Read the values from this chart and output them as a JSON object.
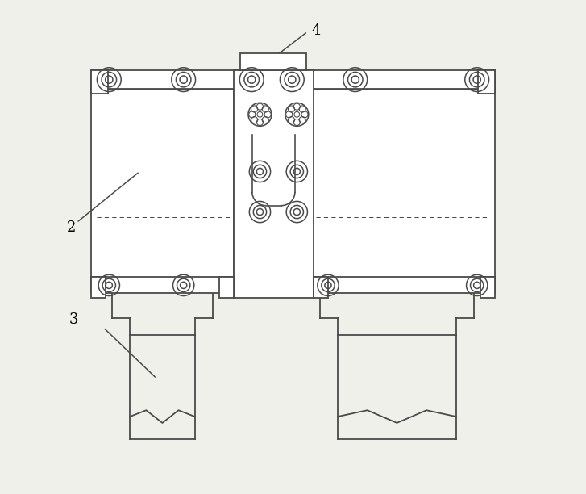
{
  "bg_color": "#f0f0eb",
  "line_color": "#4a4a4a",
  "lw": 1.3,
  "label_2": "2",
  "label_3": "3",
  "label_4": "4"
}
